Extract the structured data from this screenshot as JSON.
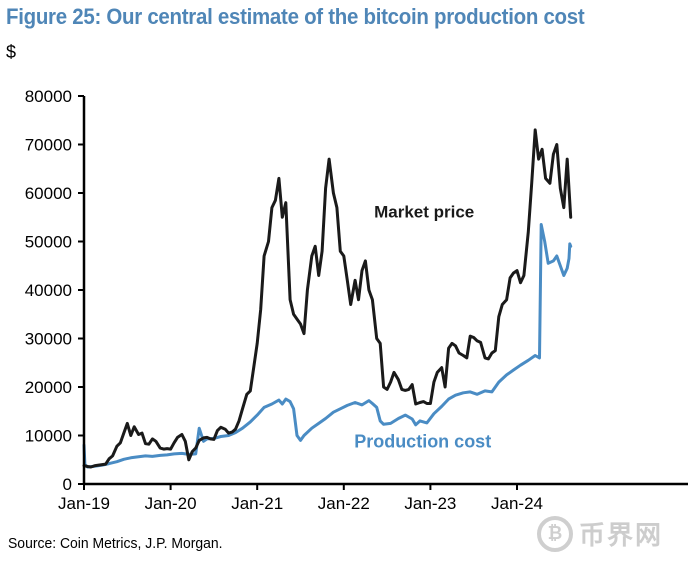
{
  "figure": {
    "title": "Figure 25: Our central estimate of the bitcoin production cost",
    "unit_label": "$",
    "source": "Source: Coin Metrics, J.P. Morgan.",
    "watermark": {
      "icon": "bitcoin-coin-icon",
      "glyph": "₿",
      "text": "币界网"
    }
  },
  "chart_data": {
    "type": "line",
    "title": "Figure 25: Our central estimate of the bitcoin production cost",
    "xlabel": "",
    "ylabel": "$",
    "xlim": [
      2019.0,
      2024.65
    ],
    "ylim": [
      0,
      80000
    ],
    "grid": false,
    "legend": "inline annotations",
    "x_ticks": [
      {
        "value": 2019.0,
        "label": "Jan-19"
      },
      {
        "value": 2020.0,
        "label": "Jan-20"
      },
      {
        "value": 2021.0,
        "label": "Jan-21"
      },
      {
        "value": 2022.0,
        "label": "Jan-22"
      },
      {
        "value": 2023.0,
        "label": "Jan-23"
      },
      {
        "value": 2024.0,
        "label": "Jan-24"
      }
    ],
    "y_ticks": [
      {
        "value": 0,
        "label": "0"
      },
      {
        "value": 10000,
        "label": "10000"
      },
      {
        "value": 20000,
        "label": "20000"
      },
      {
        "value": 30000,
        "label": "30000"
      },
      {
        "value": 40000,
        "label": "40000"
      },
      {
        "value": 50000,
        "label": "50000"
      },
      {
        "value": 60000,
        "label": "60000"
      },
      {
        "value": 70000,
        "label": "70000"
      },
      {
        "value": 80000,
        "label": "80000"
      }
    ],
    "annotations": [
      {
        "text": "Market price",
        "series": "Market price",
        "x": 2022.35,
        "y": 55000
      },
      {
        "text": "Production cost",
        "series": "Production cost",
        "x": 2022.12,
        "y": 7500
      }
    ],
    "series": [
      {
        "name": "Market price",
        "color": "#1a1a1a",
        "points": [
          [
            2019.0,
            3800
          ],
          [
            2019.04,
            3600
          ],
          [
            2019.08,
            3500
          ],
          [
            2019.13,
            3800
          ],
          [
            2019.17,
            3900
          ],
          [
            2019.21,
            4000
          ],
          [
            2019.25,
            4100
          ],
          [
            2019.29,
            5200
          ],
          [
            2019.33,
            5800
          ],
          [
            2019.38,
            7800
          ],
          [
            2019.42,
            8500
          ],
          [
            2019.46,
            10500
          ],
          [
            2019.5,
            12500
          ],
          [
            2019.54,
            10000
          ],
          [
            2019.58,
            11800
          ],
          [
            2019.63,
            10200
          ],
          [
            2019.67,
            10500
          ],
          [
            2019.71,
            8300
          ],
          [
            2019.75,
            8200
          ],
          [
            2019.79,
            9300
          ],
          [
            2019.83,
            8800
          ],
          [
            2019.88,
            7400
          ],
          [
            2019.92,
            7200
          ],
          [
            2019.96,
            7300
          ],
          [
            2020.0,
            7200
          ],
          [
            2020.04,
            8500
          ],
          [
            2020.08,
            9600
          ],
          [
            2020.13,
            10200
          ],
          [
            2020.17,
            8800
          ],
          [
            2020.21,
            5000
          ],
          [
            2020.25,
            6700
          ],
          [
            2020.29,
            7400
          ],
          [
            2020.33,
            9000
          ],
          [
            2020.38,
            9500
          ],
          [
            2020.42,
            9600
          ],
          [
            2020.46,
            9300
          ],
          [
            2020.5,
            9200
          ],
          [
            2020.54,
            11000
          ],
          [
            2020.58,
            11700
          ],
          [
            2020.63,
            11300
          ],
          [
            2020.67,
            10500
          ],
          [
            2020.71,
            10700
          ],
          [
            2020.75,
            11300
          ],
          [
            2020.79,
            13000
          ],
          [
            2020.83,
            15500
          ],
          [
            2020.88,
            18500
          ],
          [
            2020.92,
            19200
          ],
          [
            2020.96,
            24000
          ],
          [
            2021.0,
            29000
          ],
          [
            2021.04,
            36000
          ],
          [
            2021.08,
            47000
          ],
          [
            2021.13,
            50000
          ],
          [
            2021.17,
            57000
          ],
          [
            2021.21,
            58500
          ],
          [
            2021.25,
            63000
          ],
          [
            2021.29,
            55000
          ],
          [
            2021.33,
            58000
          ],
          [
            2021.38,
            38000
          ],
          [
            2021.42,
            35000
          ],
          [
            2021.46,
            34000
          ],
          [
            2021.5,
            33000
          ],
          [
            2021.54,
            31000
          ],
          [
            2021.58,
            40000
          ],
          [
            2021.63,
            47000
          ],
          [
            2021.67,
            49000
          ],
          [
            2021.71,
            43000
          ],
          [
            2021.75,
            48000
          ],
          [
            2021.79,
            61000
          ],
          [
            2021.83,
            67000
          ],
          [
            2021.88,
            60000
          ],
          [
            2021.92,
            57000
          ],
          [
            2021.96,
            48000
          ],
          [
            2022.0,
            47000
          ],
          [
            2022.04,
            42000
          ],
          [
            2022.08,
            37000
          ],
          [
            2022.13,
            42000
          ],
          [
            2022.17,
            38000
          ],
          [
            2022.21,
            44000
          ],
          [
            2022.25,
            46000
          ],
          [
            2022.29,
            40000
          ],
          [
            2022.33,
            38000
          ],
          [
            2022.38,
            30000
          ],
          [
            2022.42,
            29000
          ],
          [
            2022.46,
            20000
          ],
          [
            2022.5,
            19500
          ],
          [
            2022.54,
            21000
          ],
          [
            2022.58,
            23000
          ],
          [
            2022.63,
            21500
          ],
          [
            2022.67,
            19500
          ],
          [
            2022.71,
            19300
          ],
          [
            2022.75,
            19500
          ],
          [
            2022.79,
            20500
          ],
          [
            2022.83,
            16500
          ],
          [
            2022.88,
            16800
          ],
          [
            2022.92,
            17000
          ],
          [
            2022.96,
            16600
          ],
          [
            2023.0,
            16600
          ],
          [
            2023.04,
            21000
          ],
          [
            2023.08,
            23000
          ],
          [
            2023.13,
            24000
          ],
          [
            2023.17,
            20000
          ],
          [
            2023.21,
            28000
          ],
          [
            2023.25,
            29000
          ],
          [
            2023.29,
            28500
          ],
          [
            2023.33,
            27000
          ],
          [
            2023.38,
            26500
          ],
          [
            2023.42,
            26000
          ],
          [
            2023.46,
            30500
          ],
          [
            2023.5,
            30200
          ],
          [
            2023.54,
            29500
          ],
          [
            2023.58,
            29200
          ],
          [
            2023.63,
            26000
          ],
          [
            2023.67,
            25800
          ],
          [
            2023.71,
            27000
          ],
          [
            2023.75,
            27500
          ],
          [
            2023.79,
            34500
          ],
          [
            2023.83,
            37000
          ],
          [
            2023.88,
            38000
          ],
          [
            2023.92,
            42500
          ],
          [
            2023.96,
            43500
          ],
          [
            2024.0,
            44000
          ],
          [
            2024.04,
            41500
          ],
          [
            2024.08,
            43000
          ],
          [
            2024.13,
            52000
          ],
          [
            2024.17,
            62000
          ],
          [
            2024.21,
            73000
          ],
          [
            2024.25,
            67000
          ],
          [
            2024.29,
            69000
          ],
          [
            2024.33,
            63000
          ],
          [
            2024.38,
            62000
          ],
          [
            2024.42,
            68000
          ],
          [
            2024.46,
            70000
          ],
          [
            2024.5,
            61000
          ],
          [
            2024.54,
            57000
          ],
          [
            2024.58,
            67000
          ],
          [
            2024.62,
            55000
          ]
        ]
      },
      {
        "name": "Production cost",
        "color": "#4a8cc4",
        "points": [
          [
            2019.0,
            8000
          ],
          [
            2019.01,
            4000
          ],
          [
            2019.04,
            3500
          ],
          [
            2019.13,
            3700
          ],
          [
            2019.21,
            3900
          ],
          [
            2019.29,
            4200
          ],
          [
            2019.38,
            4600
          ],
          [
            2019.46,
            5100
          ],
          [
            2019.54,
            5400
          ],
          [
            2019.63,
            5600
          ],
          [
            2019.71,
            5800
          ],
          [
            2019.79,
            5700
          ],
          [
            2019.88,
            5900
          ],
          [
            2019.96,
            6000
          ],
          [
            2020.04,
            6200
          ],
          [
            2020.13,
            6300
          ],
          [
            2020.21,
            6100
          ],
          [
            2020.29,
            6200
          ],
          [
            2020.33,
            11500
          ],
          [
            2020.38,
            8800
          ],
          [
            2020.42,
            9300
          ],
          [
            2020.5,
            9400
          ],
          [
            2020.58,
            9800
          ],
          [
            2020.67,
            10000
          ],
          [
            2020.75,
            10600
          ],
          [
            2020.83,
            11500
          ],
          [
            2020.92,
            12800
          ],
          [
            2021.0,
            14200
          ],
          [
            2021.08,
            15800
          ],
          [
            2021.17,
            16500
          ],
          [
            2021.25,
            17300
          ],
          [
            2021.29,
            16500
          ],
          [
            2021.33,
            17500
          ],
          [
            2021.38,
            17000
          ],
          [
            2021.42,
            15500
          ],
          [
            2021.46,
            10000
          ],
          [
            2021.5,
            9000
          ],
          [
            2021.54,
            10000
          ],
          [
            2021.63,
            11500
          ],
          [
            2021.71,
            12500
          ],
          [
            2021.79,
            13500
          ],
          [
            2021.88,
            14800
          ],
          [
            2021.96,
            15500
          ],
          [
            2022.04,
            16200
          ],
          [
            2022.13,
            16800
          ],
          [
            2022.21,
            16300
          ],
          [
            2022.29,
            17200
          ],
          [
            2022.33,
            16600
          ],
          [
            2022.38,
            15800
          ],
          [
            2022.42,
            13000
          ],
          [
            2022.46,
            12300
          ],
          [
            2022.54,
            12500
          ],
          [
            2022.63,
            13500
          ],
          [
            2022.71,
            14200
          ],
          [
            2022.79,
            13400
          ],
          [
            2022.83,
            12200
          ],
          [
            2022.88,
            13000
          ],
          [
            2022.96,
            12600
          ],
          [
            2023.04,
            14500
          ],
          [
            2023.13,
            16000
          ],
          [
            2023.21,
            17500
          ],
          [
            2023.29,
            18300
          ],
          [
            2023.38,
            18800
          ],
          [
            2023.46,
            19000
          ],
          [
            2023.54,
            18500
          ],
          [
            2023.63,
            19200
          ],
          [
            2023.71,
            19000
          ],
          [
            2023.79,
            21000
          ],
          [
            2023.88,
            22500
          ],
          [
            2023.96,
            23500
          ],
          [
            2024.04,
            24500
          ],
          [
            2024.13,
            25500
          ],
          [
            2024.21,
            26500
          ],
          [
            2024.26,
            26000
          ],
          [
            2024.28,
            53500
          ],
          [
            2024.32,
            50000
          ],
          [
            2024.36,
            45500
          ],
          [
            2024.42,
            46000
          ],
          [
            2024.46,
            47000
          ],
          [
            2024.5,
            45000
          ],
          [
            2024.54,
            43000
          ],
          [
            2024.58,
            44500
          ],
          [
            2024.6,
            46500
          ],
          [
            2024.61,
            49500
          ],
          [
            2024.62,
            49000
          ]
        ]
      }
    ]
  }
}
